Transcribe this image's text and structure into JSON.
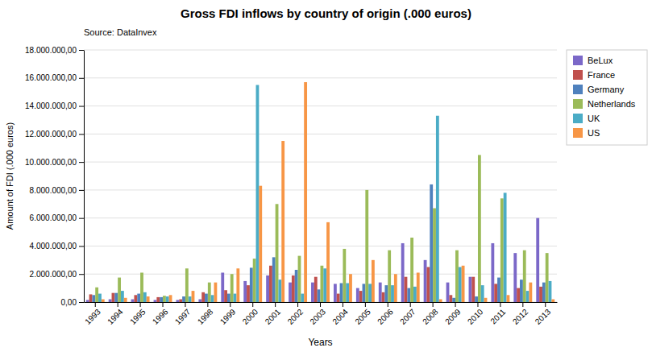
{
  "chart_data": {
    "type": "bar",
    "title": "Gross FDI inflows by country of origin (.000 euros)",
    "subtitle": "Source: DataInvex",
    "x_label": "Years",
    "y_label": "Amount of FDI (.000 euros)",
    "categories": [
      "1993",
      "1994",
      "1995",
      "1996",
      "1997",
      "1998",
      "1999",
      "2000",
      "2001",
      "2002",
      "2003",
      "2004",
      "2005",
      "2006",
      "2007",
      "2008",
      "2009",
      "2010",
      "2011",
      "2012",
      "2013"
    ],
    "series": [
      {
        "name": "BeLux",
        "color": "#7B68C8",
        "values": [
          150000,
          200000,
          200000,
          150000,
          150000,
          200000,
          2100000,
          1500000,
          1900000,
          1400000,
          1400000,
          1300000,
          1000000,
          1400000,
          4200000,
          3000000,
          1400000,
          1800000,
          4200000,
          3500000,
          6000000
        ]
      },
      {
        "name": "France",
        "color": "#C0504D",
        "values": [
          550000,
          650000,
          500000,
          350000,
          200000,
          700000,
          850000,
          1200000,
          2600000,
          1900000,
          1800000,
          600000,
          800000,
          700000,
          1800000,
          2500000,
          500000,
          1800000,
          1300000,
          1000000,
          1100000
        ]
      },
      {
        "name": "Germany",
        "color": "#4F81BD",
        "values": [
          500000,
          650000,
          600000,
          350000,
          400000,
          600000,
          600000,
          2450000,
          3200000,
          2300000,
          900000,
          1350000,
          1300000,
          1200000,
          1000000,
          8400000,
          300000,
          400000,
          1750000,
          1600000,
          1400000
        ]
      },
      {
        "name": "Netherlands",
        "color": "#9BBB59",
        "values": [
          1050000,
          1750000,
          2100000,
          450000,
          2400000,
          1400000,
          2000000,
          3100000,
          7000000,
          3300000,
          2600000,
          3800000,
          8000000,
          3700000,
          4600000,
          6700000,
          3700000,
          10500000,
          7400000,
          3700000,
          3500000
        ]
      },
      {
        "name": "UK",
        "color": "#4BACC6",
        "values": [
          600000,
          800000,
          700000,
          400000,
          400000,
          500000,
          600000,
          15500000,
          1600000,
          600000,
          2400000,
          1350000,
          1300000,
          1200000,
          1100000,
          13300000,
          2500000,
          1200000,
          7800000,
          800000,
          1500000
        ]
      },
      {
        "name": "US",
        "color": "#F79646",
        "values": [
          200000,
          300000,
          400000,
          500000,
          800000,
          1400000,
          2400000,
          8300000,
          11500000,
          15700000,
          5700000,
          2000000,
          3000000,
          2000000,
          2100000,
          200000,
          2600000,
          300000,
          500000,
          1400000,
          200000
        ]
      }
    ],
    "ylim": [
      0,
      18000000
    ],
    "yticks": [
      {
        "value": 0,
        "label": "0,00"
      },
      {
        "value": 2000000,
        "label": "2.000.000,00"
      },
      {
        "value": 4000000,
        "label": "4.000.000,00"
      },
      {
        "value": 6000000,
        "label": "6.000.000,00"
      },
      {
        "value": 8000000,
        "label": "8.000.000,00"
      },
      {
        "value": 10000000,
        "label": "10.000.000,00"
      },
      {
        "value": 12000000,
        "label": "12.000.000,00"
      },
      {
        "value": 14000000,
        "label": "14.000.000,00"
      },
      {
        "value": 16000000,
        "label": "16.000.000,00"
      },
      {
        "value": 18000000,
        "label": "18.000.000,00"
      }
    ],
    "grid": true,
    "legend": "upper right"
  }
}
